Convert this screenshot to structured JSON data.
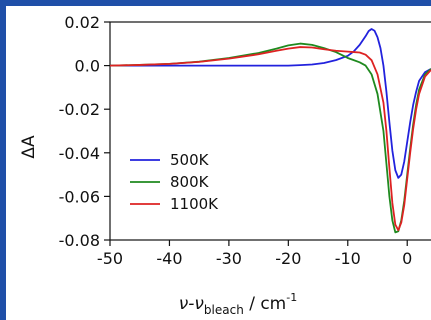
{
  "chart_data": {
    "type": "line",
    "title": "",
    "xlabel_main": "ν-ν",
    "xlabel_sub": "bleach",
    "xlabel_unit": " / cm",
    "xlabel_sup": "-1",
    "ylabel": "ΔA",
    "xlim": [
      -50,
      4
    ],
    "ylim": [
      -0.08,
      0.02
    ],
    "xticks": [
      -50,
      -40,
      -30,
      -20,
      -10,
      0
    ],
    "xtick_labels": [
      "-50",
      "-40",
      "-30",
      "-20",
      "-10",
      "0"
    ],
    "yticks": [
      0.02,
      0.0,
      -0.02,
      -0.04,
      -0.06,
      -0.08
    ],
    "ytick_labels": [
      "0.02",
      "0.0",
      "-0.02",
      "-0.04",
      "-0.06",
      "-0.08"
    ],
    "legend_position": "lower-left",
    "series": [
      {
        "name": "500K",
        "color": "#2222dd",
        "points": [
          [
            -50,
            0.0
          ],
          [
            -40,
            0.0
          ],
          [
            -30,
            0.0
          ],
          [
            -25,
            0.0
          ],
          [
            -20,
            0.0
          ],
          [
            -18,
            0.0002
          ],
          [
            -16,
            0.0005
          ],
          [
            -14,
            0.0012
          ],
          [
            -12,
            0.0025
          ],
          [
            -10,
            0.0045
          ],
          [
            -9,
            0.0065
          ],
          [
            -8,
            0.0095
          ],
          [
            -7,
            0.0135
          ],
          [
            -6.5,
            0.0158
          ],
          [
            -6,
            0.0168
          ],
          [
            -5.5,
            0.016
          ],
          [
            -5,
            0.013
          ],
          [
            -4.5,
            0.008
          ],
          [
            -4,
            0.0
          ],
          [
            -3.5,
            -0.012
          ],
          [
            -3,
            -0.026
          ],
          [
            -2.5,
            -0.039
          ],
          [
            -2,
            -0.048
          ],
          [
            -1.5,
            -0.0515
          ],
          [
            -1,
            -0.05
          ],
          [
            -0.5,
            -0.044
          ],
          [
            0,
            -0.035
          ],
          [
            0.5,
            -0.026
          ],
          [
            1,
            -0.018
          ],
          [
            1.5,
            -0.012
          ],
          [
            2,
            -0.007
          ],
          [
            3,
            -0.003
          ],
          [
            4,
            -0.0015
          ]
        ]
      },
      {
        "name": "800K",
        "color": "#1f8a1f",
        "points": [
          [
            -50,
            0.0
          ],
          [
            -45,
            0.0003
          ],
          [
            -40,
            0.0008
          ],
          [
            -35,
            0.0018
          ],
          [
            -30,
            0.0035
          ],
          [
            -25,
            0.0058
          ],
          [
            -22,
            0.0078
          ],
          [
            -20,
            0.0093
          ],
          [
            -18,
            0.0101
          ],
          [
            -16,
            0.0095
          ],
          [
            -14,
            0.008
          ],
          [
            -12,
            0.0062
          ],
          [
            -10,
            0.0035
          ],
          [
            -9,
            0.0025
          ],
          [
            -8,
            0.0015
          ],
          [
            -7,
            0.0
          ],
          [
            -6,
            -0.004
          ],
          [
            -5,
            -0.013
          ],
          [
            -4,
            -0.03
          ],
          [
            -3.5,
            -0.045
          ],
          [
            -3,
            -0.06
          ],
          [
            -2.5,
            -0.071
          ],
          [
            -2,
            -0.0765
          ],
          [
            -1.5,
            -0.076
          ],
          [
            -1,
            -0.071
          ],
          [
            -0.5,
            -0.062
          ],
          [
            0,
            -0.05
          ],
          [
            0.5,
            -0.038
          ],
          [
            1,
            -0.027
          ],
          [
            1.5,
            -0.018
          ],
          [
            2,
            -0.011
          ],
          [
            3,
            -0.004
          ],
          [
            4,
            -0.0015
          ]
        ]
      },
      {
        "name": "1100K",
        "color": "#dd2222",
        "points": [
          [
            -50,
            0.0
          ],
          [
            -45,
            0.0003
          ],
          [
            -40,
            0.0008
          ],
          [
            -35,
            0.0017
          ],
          [
            -30,
            0.0032
          ],
          [
            -25,
            0.0052
          ],
          [
            -22,
            0.0068
          ],
          [
            -20,
            0.0078
          ],
          [
            -18,
            0.0085
          ],
          [
            -16,
            0.0083
          ],
          [
            -14,
            0.0075
          ],
          [
            -12,
            0.0068
          ],
          [
            -10,
            0.0064
          ],
          [
            -9,
            0.0062
          ],
          [
            -8,
            0.006
          ],
          [
            -7,
            0.005
          ],
          [
            -6,
            0.0025
          ],
          [
            -5,
            -0.004
          ],
          [
            -4,
            -0.017
          ],
          [
            -3.5,
            -0.03
          ],
          [
            -3,
            -0.047
          ],
          [
            -2.5,
            -0.063
          ],
          [
            -2,
            -0.073
          ],
          [
            -1.5,
            -0.0755
          ],
          [
            -1,
            -0.072
          ],
          [
            -0.5,
            -0.064
          ],
          [
            0,
            -0.052
          ],
          [
            0.5,
            -0.04
          ],
          [
            1,
            -0.029
          ],
          [
            1.5,
            -0.02
          ],
          [
            2,
            -0.013
          ],
          [
            3,
            -0.005
          ],
          [
            4,
            -0.002
          ]
        ]
      }
    ]
  }
}
